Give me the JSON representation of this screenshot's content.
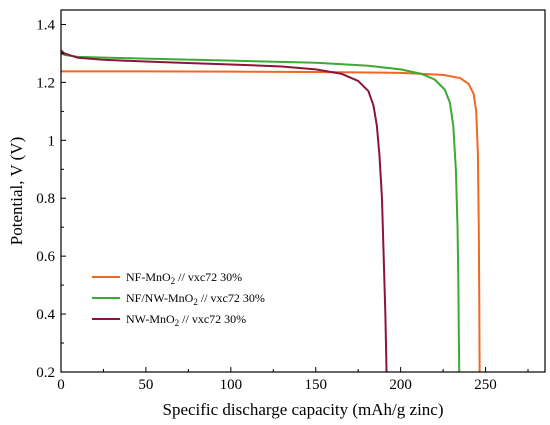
{
  "chart_data": {
    "type": "line",
    "title": "",
    "xlabel": "Specific discharge capacity (mAh/g zinc)",
    "ylabel": "Potential, V (V)",
    "xlim": [
      0,
      285
    ],
    "ylim": [
      0.2,
      1.45
    ],
    "xticks": [
      "0",
      "50",
      "100",
      "150",
      "200",
      "250"
    ],
    "yticks": [
      "0.2",
      "0.4",
      "0.6",
      "0.8",
      "1",
      "1.2",
      "1.4"
    ],
    "grid": false,
    "legend_position": "bottom-left",
    "series": [
      {
        "name": "NF-MnO2 // vxc72 30%",
        "color": "#f26522",
        "points": [
          [
            0,
            1.238
          ],
          [
            50,
            1.238
          ],
          [
            100,
            1.237
          ],
          [
            150,
            1.236
          ],
          [
            200,
            1.233
          ],
          [
            225,
            1.226
          ],
          [
            235,
            1.215
          ],
          [
            240,
            1.195
          ],
          [
            243,
            1.16
          ],
          [
            244.5,
            1.1
          ],
          [
            245.5,
            0.95
          ],
          [
            246,
            0.7
          ],
          [
            246.3,
            0.45
          ],
          [
            246.5,
            0.2
          ]
        ]
      },
      {
        "name": "NF/NW-MnO2 // vxc72 30%",
        "color": "#3aaa35",
        "points": [
          [
            0,
            1.3
          ],
          [
            2,
            1.295
          ],
          [
            10,
            1.288
          ],
          [
            50,
            1.282
          ],
          [
            100,
            1.275
          ],
          [
            150,
            1.268
          ],
          [
            180,
            1.258
          ],
          [
            200,
            1.245
          ],
          [
            212,
            1.23
          ],
          [
            220,
            1.21
          ],
          [
            226,
            1.175
          ],
          [
            229,
            1.13
          ],
          [
            231,
            1.05
          ],
          [
            232.5,
            0.9
          ],
          [
            233.5,
            0.7
          ],
          [
            234,
            0.5
          ],
          [
            234.3,
            0.3
          ],
          [
            234.5,
            0.2
          ]
        ]
      },
      {
        "name": "NW-MnO2 // vxc72 30%",
        "color": "#8b1538",
        "points": [
          [
            0,
            1.31
          ],
          [
            2,
            1.3
          ],
          [
            10,
            1.285
          ],
          [
            25,
            1.278
          ],
          [
            50,
            1.272
          ],
          [
            70,
            1.268
          ],
          [
            100,
            1.262
          ],
          [
            130,
            1.255
          ],
          [
            150,
            1.245
          ],
          [
            165,
            1.23
          ],
          [
            175,
            1.205
          ],
          [
            181,
            1.17
          ],
          [
            184,
            1.12
          ],
          [
            186,
            1.05
          ],
          [
            187.5,
            0.95
          ],
          [
            189,
            0.8
          ],
          [
            190,
            0.6
          ],
          [
            191,
            0.4
          ],
          [
            191.7,
            0.2
          ]
        ]
      }
    ]
  },
  "legend": [
    {
      "label_pre": "NF-MnO",
      "sub": "2",
      "label_post": " // vxc72 30%",
      "color": "#f26522"
    },
    {
      "label_pre": "NF/NW-MnO",
      "sub": "2",
      "label_post": " // vxc72 30%",
      "color": "#3aaa35"
    },
    {
      "label_pre": "NW-MnO",
      "sub": "2",
      "label_post": " // vxc72 30%",
      "color": "#8b1538"
    }
  ]
}
